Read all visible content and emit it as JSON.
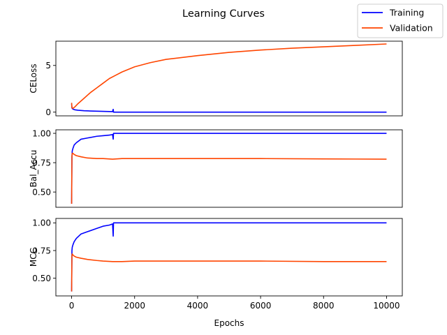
{
  "chart_data": {
    "type": "line",
    "title": "Learning Curves",
    "xlabel": "Epochs",
    "x_ticks": [
      0,
      2000,
      4000,
      6000,
      8000,
      10000
    ],
    "x_range": [
      -500,
      10500
    ],
    "legend": {
      "placement": "top-right",
      "entries": [
        {
          "name": "Training",
          "color": "#0000ff"
        },
        {
          "name": "Validation",
          "color": "#ff4500"
        }
      ]
    },
    "subplots": [
      {
        "ylabel": "CELoss",
        "ylim": [
          -0.4,
          7.6
        ],
        "y_ticks": [
          0,
          5
        ],
        "series": [
          {
            "name": "Training",
            "color": "#0000ff",
            "x": [
              0,
              10,
              30,
              60,
              100,
              200,
              400,
              600,
              800,
              1000,
              1200,
              1300,
              1320,
              1330,
              1400,
              2000,
              4000,
              6000,
              8000,
              10000
            ],
            "y": [
              0.9,
              0.45,
              0.35,
              0.3,
              0.25,
              0.2,
              0.15,
              0.12,
              0.1,
              0.08,
              0.06,
              0.05,
              0.3,
              0.0,
              0.0,
              0.0,
              0.0,
              0.0,
              0.0,
              0.0
            ]
          },
          {
            "name": "Validation",
            "color": "#ff4500",
            "x": [
              0,
              10,
              30,
              60,
              100,
              200,
              400,
              600,
              800,
              1000,
              1200,
              1400,
              1600,
              2000,
              2500,
              3000,
              4000,
              5000,
              6000,
              7000,
              8000,
              9000,
              10000
            ],
            "y": [
              1.0,
              0.5,
              0.4,
              0.45,
              0.55,
              0.9,
              1.5,
              2.1,
              2.6,
              3.1,
              3.6,
              3.95,
              4.3,
              4.85,
              5.3,
              5.65,
              6.05,
              6.4,
              6.65,
              6.85,
              7.0,
              7.15,
              7.3
            ]
          }
        ]
      },
      {
        "ylabel": "Bal_Accu",
        "ylim": [
          0.37,
          1.03
        ],
        "y_ticks": [
          0.5,
          0.75,
          1.0
        ],
        "y_tick_labels": [
          "0.50",
          "0.75",
          "1.00"
        ],
        "series": [
          {
            "name": "Training",
            "color": "#0000ff",
            "x": [
              0,
              5,
              10,
              20,
              40,
              80,
              150,
              300,
              500,
              800,
              1000,
              1200,
              1300,
              1320,
              1330,
              1400,
              2000,
              4000,
              6000,
              8000,
              10000
            ],
            "y": [
              0.4,
              0.6,
              0.8,
              0.85,
              0.87,
              0.9,
              0.92,
              0.95,
              0.96,
              0.975,
              0.98,
              0.985,
              0.99,
              0.95,
              1.0,
              1.0,
              1.0,
              1.0,
              1.0,
              1.0,
              1.0
            ]
          },
          {
            "name": "Validation",
            "color": "#ff4500",
            "x": [
              0,
              5,
              10,
              20,
              40,
              80,
              150,
              300,
              500,
              800,
              1000,
              1300,
              1600,
              2000,
              4000,
              6000,
              8000,
              10000
            ],
            "y": [
              0.4,
              0.6,
              0.8,
              0.83,
              0.83,
              0.82,
              0.81,
              0.8,
              0.79,
              0.785,
              0.785,
              0.78,
              0.785,
              0.785,
              0.785,
              0.785,
              0.782,
              0.78
            ]
          }
        ]
      },
      {
        "ylabel": "MCC",
        "ylim": [
          0.34,
          1.04
        ],
        "y_ticks": [
          0.5,
          0.75,
          1.0
        ],
        "y_tick_labels": [
          "0.50",
          "0.75",
          "1.00"
        ],
        "series": [
          {
            "name": "Training",
            "color": "#0000ff",
            "x": [
              0,
              5,
              10,
              20,
              40,
              80,
              150,
              300,
              500,
              800,
              1000,
              1200,
              1300,
              1320,
              1330,
              1400,
              2000,
              4000,
              6000,
              8000,
              10000
            ],
            "y": [
              0.38,
              0.55,
              0.75,
              0.78,
              0.8,
              0.83,
              0.86,
              0.9,
              0.92,
              0.95,
              0.97,
              0.98,
              0.99,
              0.88,
              1.0,
              1.0,
              1.0,
              1.0,
              1.0,
              1.0,
              1.0
            ]
          },
          {
            "name": "Validation",
            "color": "#ff4500",
            "x": [
              0,
              5,
              10,
              20,
              40,
              80,
              150,
              300,
              500,
              800,
              1000,
              1300,
              1600,
              2000,
              4000,
              6000,
              8000,
              10000
            ],
            "y": [
              0.38,
              0.55,
              0.7,
              0.72,
              0.71,
              0.7,
              0.69,
              0.68,
              0.67,
              0.66,
              0.655,
              0.65,
              0.65,
              0.655,
              0.655,
              0.655,
              0.65,
              0.65
            ]
          }
        ]
      }
    ]
  }
}
